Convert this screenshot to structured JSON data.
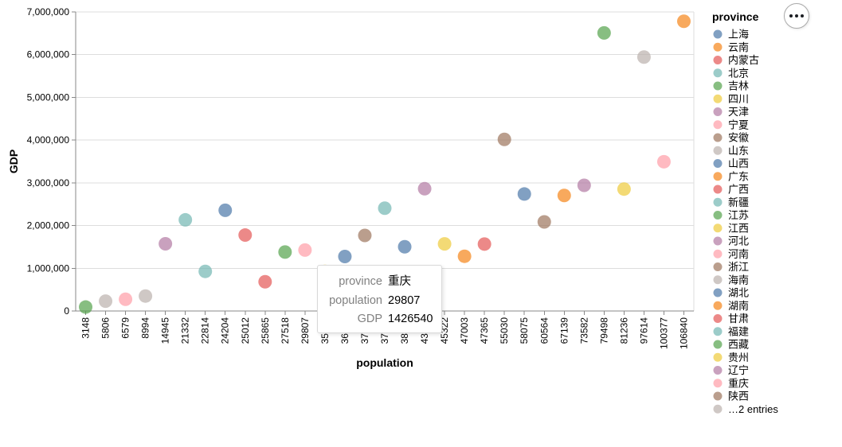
{
  "actions": {
    "icon": "more-icon"
  },
  "chart_data": {
    "type": "scatter",
    "x_scale": "ordinal",
    "xlabel": "population",
    "ylabel": "GDP",
    "categories": [
      "3148",
      "5806",
      "6579",
      "8994",
      "14945",
      "21332",
      "22814",
      "24204",
      "25012",
      "25865",
      "27518",
      "29807",
      "35051",
      "36389",
      "37694",
      "37900",
      "38340",
      "43905",
      "45322",
      "47003",
      "47365",
      "55030",
      "58075",
      "60564",
      "67139",
      "73582",
      "79498",
      "81236",
      "97614",
      "100377",
      "106840"
    ],
    "values": [
      92000,
      230000,
      275000,
      350000,
      1573000,
      2133000,
      927000,
      2357000,
      1777000,
      684000,
      1380000,
      1426540,
      927000,
      1276000,
      1769000,
      2406000,
      1504000,
      2863000,
      1571000,
      1281000,
      1567000,
      4017000,
      2738000,
      2085000,
      2704000,
      2942000,
      6509000,
      2854000,
      5943000,
      3494000,
      6781000
    ],
    "colors": [
      "#54a24b",
      "#bab0ac",
      "#ff9da6",
      "#bab0ac",
      "#b279a2",
      "#72b7b2",
      "#72b7b2",
      "#4c78a8",
      "#e45756",
      "#e45756",
      "#54a24b",
      "#ff9da6",
      "#eeca3b",
      "#4c78a8",
      "#9d755d",
      "#72b7b2",
      "#4c78a8",
      "#b279a2",
      "#eeca3b",
      "#f58518",
      "#e45756",
      "#9d755d",
      "#4c78a8",
      "#9d755d",
      "#f58518",
      "#b279a2",
      "#54a24b",
      "#eeca3b",
      "#bab0ac",
      "#ff9da6",
      "#f58518"
    ],
    "ylim": [
      0,
      7000000
    ],
    "yticks": [
      0,
      1000000,
      2000000,
      3000000,
      4000000,
      5000000,
      6000000,
      7000000
    ],
    "ytick_labels": [
      "0",
      "1,000,000",
      "2,000,000",
      "3,000,000",
      "4,000,000",
      "5,000,000",
      "6,000,000",
      "7,000,000"
    ],
    "grid": "horizontal",
    "legend": {
      "title": "province",
      "position": "right",
      "entries": [
        {
          "label": "上海",
          "color": "#4c78a8"
        },
        {
          "label": "云南",
          "color": "#f58518"
        },
        {
          "label": "内蒙古",
          "color": "#e45756"
        },
        {
          "label": "北京",
          "color": "#72b7b2"
        },
        {
          "label": "吉林",
          "color": "#54a24b"
        },
        {
          "label": "四川",
          "color": "#eeca3b"
        },
        {
          "label": "天津",
          "color": "#b279a2"
        },
        {
          "label": "宁夏",
          "color": "#ff9da6"
        },
        {
          "label": "安徽",
          "color": "#9d755d"
        },
        {
          "label": "山东",
          "color": "#bab0ac"
        },
        {
          "label": "山西",
          "color": "#4c78a8"
        },
        {
          "label": "广东",
          "color": "#f58518"
        },
        {
          "label": "广西",
          "color": "#e45756"
        },
        {
          "label": "新疆",
          "color": "#72b7b2"
        },
        {
          "label": "江苏",
          "color": "#54a24b"
        },
        {
          "label": "江西",
          "color": "#eeca3b"
        },
        {
          "label": "河北",
          "color": "#b279a2"
        },
        {
          "label": "河南",
          "color": "#ff9da6"
        },
        {
          "label": "浙江",
          "color": "#9d755d"
        },
        {
          "label": "海南",
          "color": "#bab0ac"
        },
        {
          "label": "湖北",
          "color": "#4c78a8"
        },
        {
          "label": "湖南",
          "color": "#f58518"
        },
        {
          "label": "甘肃",
          "color": "#e45756"
        },
        {
          "label": "福建",
          "color": "#72b7b2"
        },
        {
          "label": "西藏",
          "color": "#54a24b"
        },
        {
          "label": "贵州",
          "color": "#eeca3b"
        },
        {
          "label": "辽宁",
          "color": "#b279a2"
        },
        {
          "label": "重庆",
          "color": "#ff9da6"
        },
        {
          "label": "陕西",
          "color": "#9d755d"
        }
      ],
      "more": {
        "label": "…2 entries",
        "color": "#bab0ac"
      }
    }
  },
  "tooltip": {
    "rows": [
      {
        "key": "province",
        "value": "重庆"
      },
      {
        "key": "population",
        "value": "29807"
      },
      {
        "key": "GDP",
        "value": "1426540"
      }
    ]
  }
}
